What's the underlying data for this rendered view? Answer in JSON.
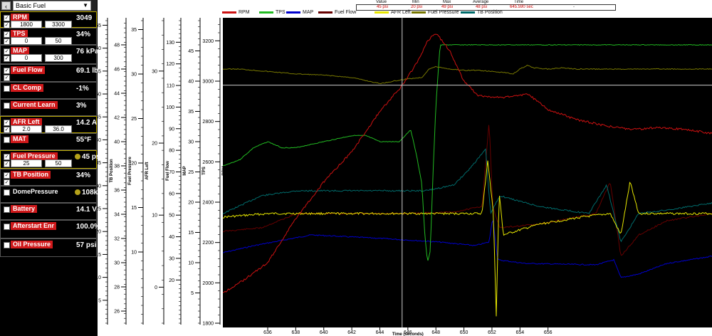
{
  "toolbar": {
    "back_icon": "chevron-left-icon",
    "preset": "Basic Fuel"
  },
  "channels": [
    {
      "id": "rpm",
      "name": "RPM",
      "value": "3049",
      "checked": true,
      "min": "1800",
      "max": "3300",
      "highlight": true
    },
    {
      "id": "tps",
      "name": "TPS",
      "value": "34%",
      "checked": true,
      "min": "0",
      "max": "50",
      "highlight": true
    },
    {
      "id": "map",
      "name": "MAP",
      "value": "76 kPa",
      "checked": true,
      "min": "0",
      "max": "300",
      "highlight": true
    },
    {
      "id": "fuelflow",
      "name": "Fuel Flow",
      "value": "69.1 lb",
      "checked": true,
      "highlight": true
    },
    {
      "id": "clcomp",
      "name": "CL Comp",
      "value": "-1%",
      "checked": false,
      "highlight": true
    },
    {
      "id": "currentlearn",
      "name": "Current Learn",
      "value": "3%",
      "checked": false,
      "highlight": true
    },
    {
      "id": "afrleft",
      "name": "AFR Left",
      "value": "14.2 A",
      "checked": true,
      "min": "2.0",
      "max": "36.0",
      "highlight": true
    },
    {
      "id": "mat",
      "name": "MAT",
      "value": "55°F",
      "checked": false,
      "highlight": true
    },
    {
      "id": "fuelpressure",
      "name": "Fuel Pressure",
      "value": "45 ps",
      "checked": true,
      "min": "25",
      "max": "50",
      "highlight": true,
      "dot": true
    },
    {
      "id": "tbposition",
      "name": "TB Position",
      "value": "34%",
      "checked": true,
      "highlight": true
    },
    {
      "id": "domepressure",
      "name": "DomePressure",
      "value": "108k",
      "checked": false,
      "highlight": false,
      "dot": true
    },
    {
      "id": "battery",
      "name": "Battery",
      "value": "14.1 V",
      "checked": false,
      "highlight": true
    },
    {
      "id": "afterstart",
      "name": "Afterstart Enr",
      "value": "100.0%",
      "checked": false,
      "highlight": true
    },
    {
      "id": "oilpressure",
      "name": "Oil Pressure",
      "value": "57 psi",
      "checked": false,
      "highlight": true
    }
  ],
  "cursor_stats": {
    "headers": [
      "Value",
      "Min",
      "Max",
      "Average",
      "Time"
    ],
    "values": [
      "45 psi",
      "20 psi",
      "49 psi",
      "48 psi",
      "645.590 sec"
    ],
    "extra": "-"
  },
  "colors": {
    "rpm": "#cc1111",
    "tps": "#22bb22",
    "map": "#0000cc",
    "fuelflow": "#660000",
    "afrleft": "#e6e600",
    "fuelpressure": "#777700",
    "tbposition": "#006b6b"
  },
  "chart_data": {
    "type": "line",
    "xlabel": "Time (seconds)",
    "x_ticks": [
      636,
      638,
      640,
      642,
      644,
      646,
      648,
      650,
      652,
      654,
      656
    ],
    "xlim": [
      632.8,
      667.7
    ],
    "cursor_x": 645.59,
    "cursor_rpm": 2980,
    "legend": [
      "RPM",
      "TPS",
      "MAP",
      "Fuel Flow",
      "AFR Left",
      "Fuel Pressure",
      "TB Position"
    ],
    "axes": [
      {
        "label": "RPM",
        "ticks": [
          1800,
          2000,
          2200,
          2400,
          2600,
          2800,
          3000,
          3200
        ],
        "range": [
          1800,
          3300
        ]
      },
      {
        "label": "TPS",
        "ticks": [
          5,
          10,
          15,
          20,
          25,
          30,
          35,
          40,
          45
        ],
        "range": [
          0,
          50
        ]
      },
      {
        "label": "MAP",
        "ticks": [
          20,
          30,
          40,
          50,
          60,
          70,
          80,
          90,
          100,
          110,
          120,
          130
        ],
        "range": [
          0,
          140
        ]
      },
      {
        "label": "Fuel Flow",
        "ticks": [
          0,
          10,
          20,
          30
        ],
        "range": [
          -5,
          37
        ]
      },
      {
        "label": "AFR Left",
        "ticks": [
          10,
          15,
          20,
          25,
          30,
          35
        ],
        "range": [
          2,
          36
        ]
      },
      {
        "label": "Fuel Pressure",
        "ticks": [
          26,
          28,
          30,
          32,
          34,
          36,
          38,
          40,
          42,
          44,
          46,
          48
        ],
        "range": [
          25,
          50
        ]
      },
      {
        "label": "TB Position",
        "ticks": [
          5,
          10,
          15,
          20,
          25,
          30,
          35,
          40,
          45,
          50,
          55,
          60,
          65
        ],
        "range": [
          0,
          66
        ]
      }
    ],
    "series": [
      {
        "name": "RPM",
        "axis": "RPM",
        "x": [
          632.8,
          634,
          636,
          638,
          640,
          642,
          644,
          645.6,
          646,
          646.8,
          647.4,
          648,
          649,
          650,
          651,
          652,
          653,
          654,
          654.5,
          656,
          658,
          660,
          662,
          664,
          666,
          667.7
        ],
        "values": [
          1950,
          2000,
          2100,
          2320,
          2500,
          2650,
          2850,
          2980,
          3020,
          3110,
          3200,
          3240,
          3150,
          3000,
          2930,
          2920,
          2920,
          2930,
          2940,
          2860,
          2810,
          2780,
          2760,
          2770,
          2760,
          2740
        ]
      },
      {
        "name": "TPS",
        "axis": "TPS",
        "x": [
          632.8,
          634,
          635,
          636,
          637,
          638,
          640,
          642,
          643,
          644,
          645,
          645.4,
          645.8,
          646.2,
          646.6,
          647,
          647.2,
          647.4,
          647.6,
          647.8,
          648,
          648.3,
          649,
          650,
          651,
          652,
          652.8,
          653.2,
          653.6,
          654,
          654.4,
          655,
          656,
          657,
          658,
          659,
          660,
          662,
          664,
          666,
          667.7
        ],
        "values": [
          26,
          27,
          29,
          30,
          29,
          29,
          30,
          31,
          31,
          30,
          30,
          30,
          31,
          32,
          28,
          23,
          15,
          10,
          12,
          25,
          36,
          46,
          46,
          46,
          46,
          46,
          46,
          46,
          46,
          46,
          46,
          46,
          46,
          46,
          46,
          46,
          46,
          46,
          46,
          46,
          46
        ]
      },
      {
        "name": "Fuel Pressure",
        "axis": "Fuel Pressure",
        "x": [
          632.8,
          634,
          636,
          638,
          640,
          642,
          644,
          645,
          646,
          647,
          647.5,
          648,
          649,
          650,
          651,
          652,
          653,
          653.5,
          654,
          654.5,
          655,
          656,
          657,
          658,
          659,
          660,
          662,
          664,
          666,
          667.7
        ],
        "values": [
          46,
          46,
          45.8,
          45.6,
          45.5,
          45.3,
          44.8,
          45,
          45.2,
          45.3,
          46,
          46.2,
          46,
          45.9,
          45.9,
          45.8,
          45.7,
          45.6,
          46,
          46.3,
          46.1,
          46,
          46.1,
          46,
          46,
          46,
          46,
          46,
          46,
          46
        ]
      }
    ]
  }
}
